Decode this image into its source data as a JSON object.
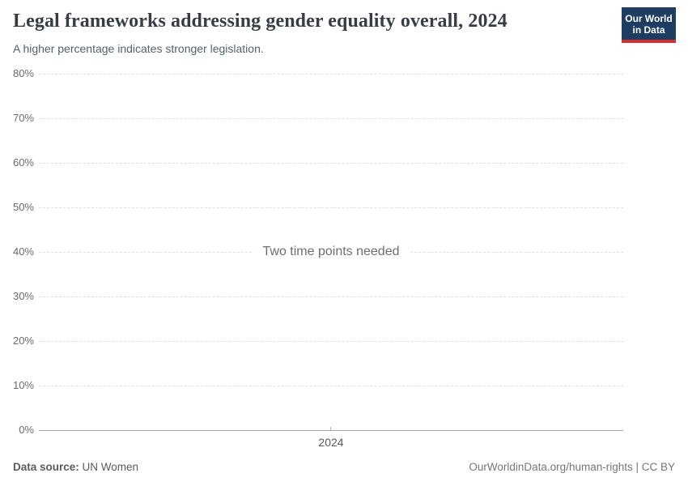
{
  "header": {
    "title": "Legal frameworks addressing gender equality overall, 2024",
    "subtitle": "A higher percentage indicates stronger legislation."
  },
  "logo": {
    "line1": "Our World",
    "line2": "in Data",
    "bg_color": "#1d3d63",
    "accent_color": "#d1322e"
  },
  "chart_data": {
    "type": "line",
    "title": "Legal frameworks addressing gender equality overall, 2024",
    "series": [],
    "empty_message": "Two time points needed",
    "x_ticks": [
      "2024"
    ],
    "y_axis": {
      "min": 0,
      "max": 80,
      "unit": "%",
      "ticks": [
        80,
        70,
        60,
        50,
        40,
        30,
        20,
        10,
        0
      ]
    },
    "grid": true,
    "legend": "none",
    "gridline_color": "#e0e0e0",
    "axis_color": "#a5a5a5"
  },
  "footer": {
    "source_label": "Data source:",
    "source_value": "UN Women",
    "credit": "OurWorldinData.org/human-rights | CC BY"
  }
}
